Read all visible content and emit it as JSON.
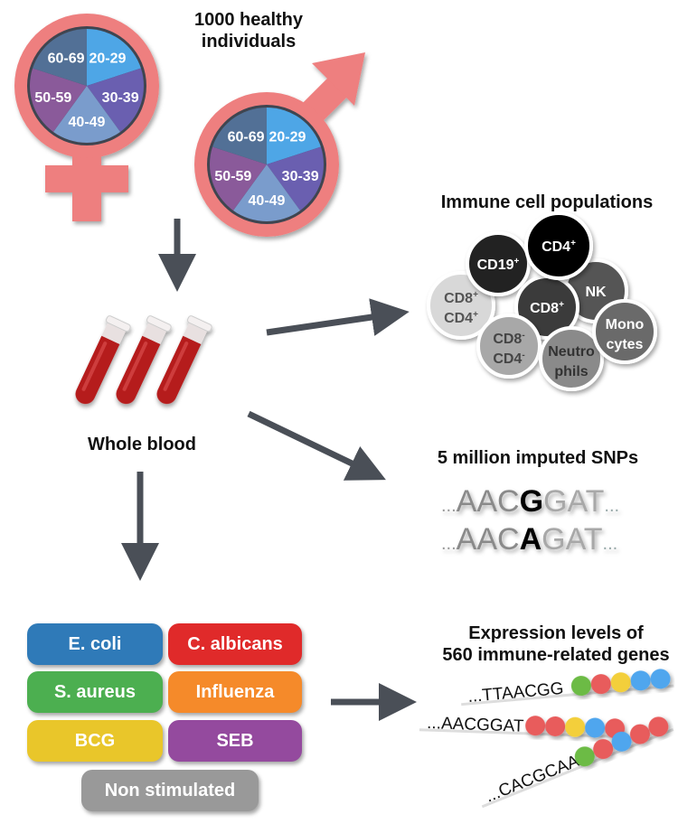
{
  "header": {
    "line1": "1000 healthy",
    "line2": "individuals"
  },
  "age_groups": [
    "20-29",
    "30-39",
    "40-49",
    "50-59",
    "60-69"
  ],
  "age_colors": [
    "#4ea6e6",
    "#6a5fb0",
    "#7a9ccc",
    "#8a5a9a",
    "#527096"
  ],
  "symbol_color": "#ee7f7f",
  "blood": {
    "label": "Whole blood"
  },
  "immune": {
    "title": "Immune cell populations",
    "cells": [
      {
        "l1": "CD8",
        "s1": "+",
        "l2": "CD4",
        "s2": "+",
        "color": "#d8d8d8",
        "text": "#555555"
      },
      {
        "l1": "CD19",
        "s1": "+",
        "l2": "",
        "s2": "",
        "color": "#222222",
        "text": "#ffffff"
      },
      {
        "l1": "NK",
        "s1": "",
        "l2": "",
        "s2": "",
        "color": "#555555",
        "text": "#ffffff"
      },
      {
        "l1": "CD8",
        "s1": "+",
        "l2": "",
        "s2": "",
        "color": "#3a3a3a",
        "text": "#ffffff"
      },
      {
        "l1": "CD4",
        "s1": "+",
        "l2": "",
        "s2": "",
        "color": "#000000",
        "text": "#ffffff"
      },
      {
        "l1": "CD8",
        "s1": "-",
        "l2": "CD4",
        "s2": "-",
        "color": "#a8a8a8",
        "text": "#444444"
      },
      {
        "l1": "Neutro",
        "s1": "",
        "l2": "phils",
        "s2": "",
        "color": "#8a8a8a",
        "text": "#333333"
      },
      {
        "l1": "Mono",
        "s1": "",
        "l2": "cytes",
        "s2": "",
        "color": "#6a6a6a",
        "text": "#ffffff"
      }
    ]
  },
  "snps": {
    "title": "5 million imputed SNPs",
    "rows": [
      {
        "pre": "AAC",
        "allele": "G",
        "post": "GAT"
      },
      {
        "pre": "AAC",
        "allele": "A",
        "post": "GAT"
      }
    ],
    "ellipsis": "..."
  },
  "stimuli": [
    {
      "label": "E. coli",
      "color": "#2f7ab8"
    },
    {
      "label": "C. albicans",
      "color": "#e02a2a"
    },
    {
      "label": "S. aureus",
      "color": "#4caf50"
    },
    {
      "label": "Influenza",
      "color": "#f58a2a"
    },
    {
      "label": "BCG",
      "color": "#e9c62a"
    },
    {
      "label": "SEB",
      "color": "#944a9e"
    },
    {
      "label": "Non stimulated",
      "color": "#999999"
    }
  ],
  "expression": {
    "title_line1": "Expression levels of",
    "title_line2": "560 immune-related genes",
    "rows": [
      {
        "seq": "...TTAACGG",
        "dots": [
          "#6cbb45",
          "#e85c5c",
          "#f3cf3a",
          "#4fa6ee",
          "#4fa6ee"
        ]
      },
      {
        "seq": "...AACGGAT",
        "dots": [
          "#e85c5c",
          "#e85c5c",
          "#f3cf3a",
          "#4fa6ee",
          "#e85c5c"
        ]
      },
      {
        "seq": "...CACGCAA",
        "dots": [
          "#6cbb45",
          "#e85c5c",
          "#4fa6ee",
          "#e85c5c",
          "#e85c5c"
        ]
      }
    ]
  }
}
